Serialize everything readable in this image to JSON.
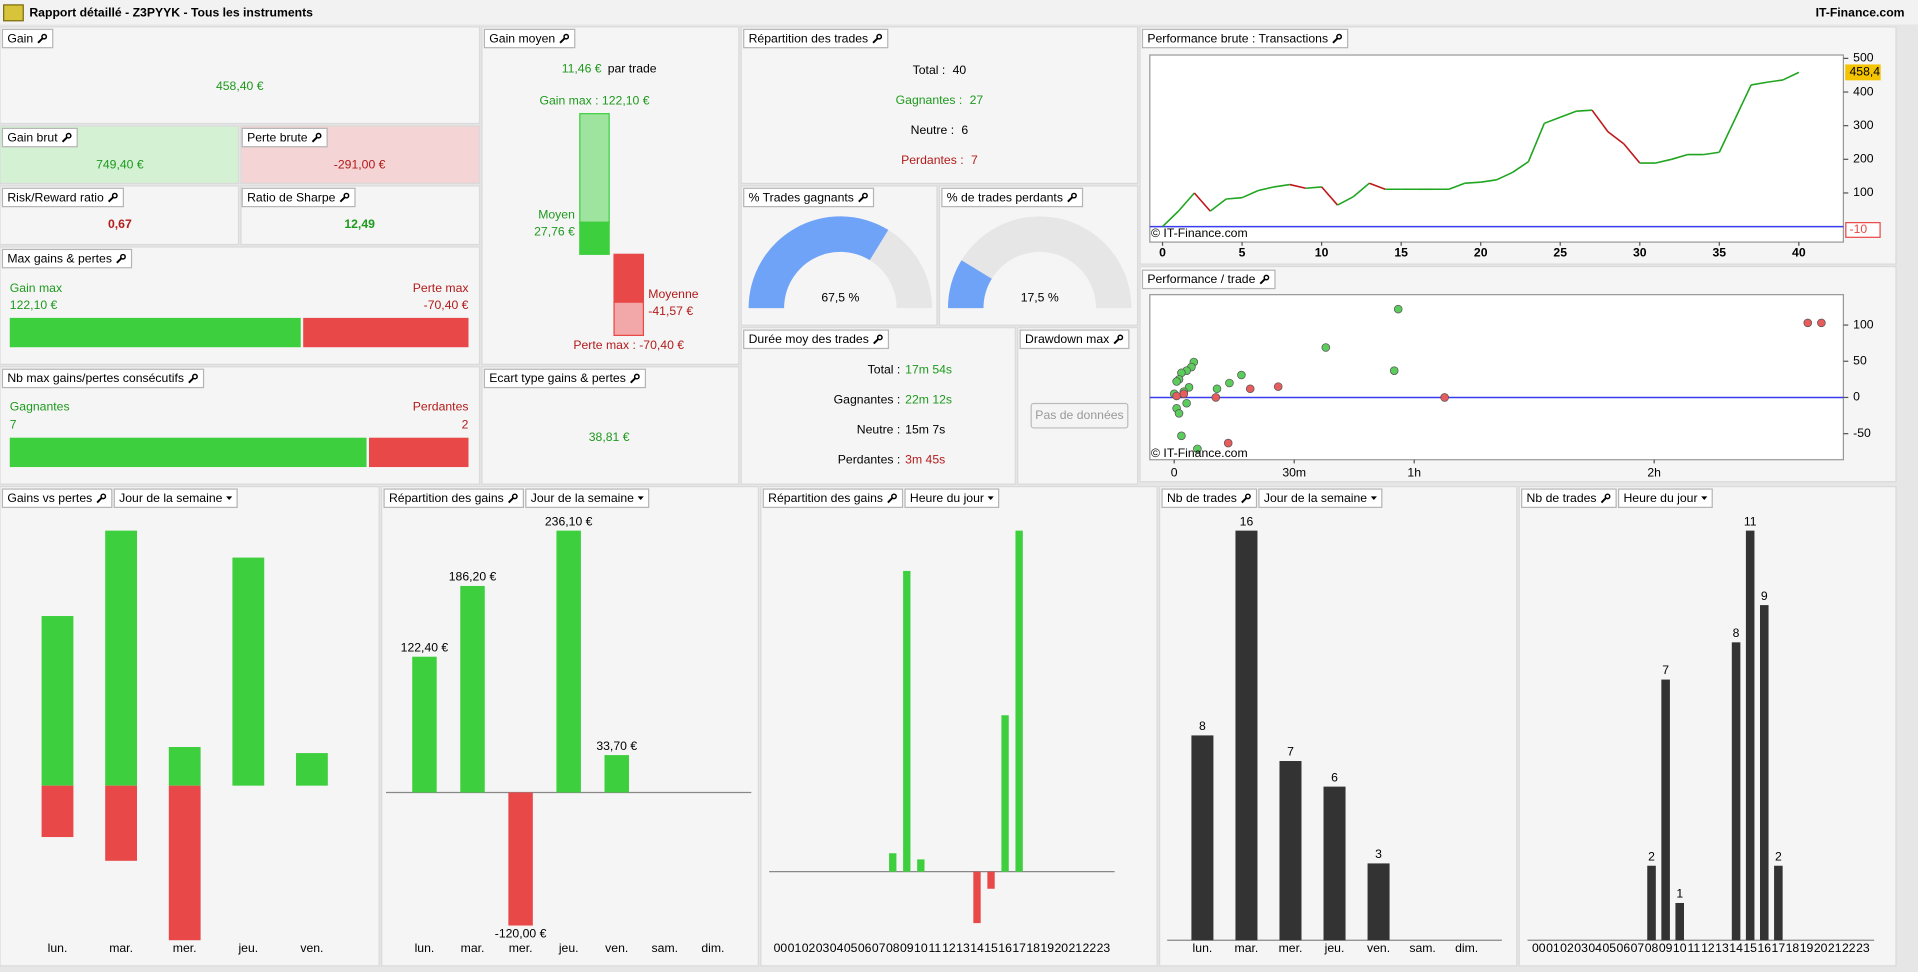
{
  "window": {
    "title": "Rapport détaillé - Z3PYYK - Tous les instruments",
    "brand": "IT-Finance.com"
  },
  "gain": {
    "label": "Gain",
    "value": "458,40 €"
  },
  "gain_brut": {
    "label": "Gain brut",
    "value": "749,40 €"
  },
  "perte_brute": {
    "label": "Perte brute",
    "value": "-291,00 €"
  },
  "risk_reward": {
    "label": "Risk/Reward ratio",
    "value": "0,67"
  },
  "sharpe": {
    "label": "Ratio de Sharpe",
    "value": "12,49"
  },
  "max_gains_pertes": {
    "label": "Max gains & pertes",
    "gain_label": "Gain max",
    "gain": 122.1,
    "gain_text": "122,10 €",
    "loss_label": "Perte max",
    "loss": -70.4,
    "loss_text": "-70,40 €",
    "gain_color": "#3dcf3d",
    "loss_color": "#e84848"
  },
  "consecutive": {
    "label": "Nb max gains/pertes consécutifs",
    "win_label": "Gagnantes",
    "wins": 7,
    "loss_label": "Perdantes",
    "losses": 2,
    "win_color": "#3dcf3d",
    "loss_color": "#e84848"
  },
  "gain_moyen": {
    "label": "Gain moyen",
    "value": "11,46 €",
    "suffix": "par trade",
    "max": 122.1,
    "max_label": "Gain max : 122,10 €",
    "avg": 27.76,
    "avg_name": "Moyen",
    "avg_label": "27,76 €",
    "avg_loss": -41.57,
    "avg_loss_name": "Moyenne",
    "avg_loss_label": "-41,57 €",
    "min": -70.4,
    "min_label": "Perte max : -70,40 €"
  },
  "ecart_type": {
    "label": "Ecart type gains & pertes",
    "value": "38,81 €"
  },
  "repartition_trades": {
    "label": "Répartition des trades",
    "rows": [
      {
        "label": "Total :",
        "value": 40,
        "color": "#000000"
      },
      {
        "label": "Gagnantes :",
        "value": 27,
        "color": "#1e9a1e"
      },
      {
        "label": "Neutre :",
        "value": 6,
        "color": "#000000"
      },
      {
        "label": "Perdantes :",
        "value": 7,
        "color": "#b31b1b"
      }
    ]
  },
  "pct_gagnants": {
    "label": "% Trades gagnants",
    "value": 67.5,
    "value_label": "67,5 %",
    "color": "#6fa3f7"
  },
  "pct_perdants": {
    "label": "% de trades perdants",
    "value": 17.5,
    "value_label": "17,5 %",
    "color": "#6fa3f7"
  },
  "duree": {
    "label": "Durée moy des trades",
    "rows": [
      {
        "label": "Total :",
        "value": "17m 54s",
        "color": "#1e9a1e"
      },
      {
        "label": "Gagnantes :",
        "value": "22m 12s",
        "color": "#1e9a1e"
      },
      {
        "label": "Neutre :",
        "value": "15m 7s",
        "color": "#000000"
      },
      {
        "label": "Perdantes :",
        "value": "3m 45s",
        "color": "#b31b1b"
      }
    ]
  },
  "drawdown": {
    "label": "Drawdown max",
    "button": "Pas de données"
  },
  "perf_brute": {
    "label": "Performance brute : Transactions",
    "type": "line",
    "x": [
      0,
      1,
      2,
      3,
      4,
      5,
      6,
      7,
      8,
      9,
      10,
      11,
      12,
      13,
      14,
      15,
      16,
      17,
      18,
      19,
      20,
      21,
      22,
      23,
      24,
      25,
      26,
      27,
      28,
      29,
      30,
      31,
      32,
      33,
      34,
      35,
      36,
      37,
      38,
      39,
      40
    ],
    "values": [
      0,
      46,
      100,
      46,
      82,
      86,
      107,
      118,
      125,
      114,
      118,
      64,
      89,
      129,
      111,
      111,
      111,
      111,
      111,
      129,
      132,
      139,
      161,
      193,
      307,
      325,
      343,
      346,
      282,
      246,
      189,
      189,
      200,
      214,
      214,
      221,
      321,
      421,
      429,
      436,
      458.4
    ],
    "up_color": "#1fa51f",
    "down_color": "#c0171b",
    "baseline": 0,
    "baseline_color": "#3a3af0",
    "xlim": [
      -0.8,
      42.8
    ],
    "ylim": [
      -46,
      510
    ],
    "xticks": [
      0,
      5,
      10,
      15,
      20,
      25,
      30,
      35,
      40
    ],
    "yticks": [
      100,
      200,
      300,
      400,
      500
    ],
    "markers": [
      {
        "value": 458.4,
        "label": "458,4",
        "color": "#f5c400"
      },
      {
        "value": -10,
        "label": "-10",
        "color": "#e84848"
      }
    ],
    "credit": "© IT-Finance.com"
  },
  "perf_trade": {
    "label": "Performance / trade",
    "type": "scatter",
    "series": [
      {
        "color": "#5ccc5c",
        "x": [
          4.9,
          4.3,
          3.1,
          1.8,
          1.2,
          0.6,
          3.7,
          2.4,
          0.6,
          1.2,
          1.8,
          5.8,
          56,
          37.9,
          55,
          10.7,
          16.8,
          13.8,
          0,
          3.1
        ],
        "values": [
          49,
          42,
          37,
          34,
          25,
          22,
          14,
          8,
          -15,
          -22,
          -53,
          -71,
          122,
          69,
          37,
          12,
          31,
          20,
          5,
          -8
        ]
      },
      {
        "color": "#e85c5c",
        "x": [
          0.6,
          2.4,
          10.4,
          19,
          26,
          67.6,
          13.5,
          158.4,
          161.8
        ],
        "values": [
          2,
          5,
          0,
          12,
          15,
          0,
          -63,
          103,
          103
        ]
      }
    ],
    "baseline": 0,
    "baseline_color": "#3a3af0",
    "xlim": [
      -6.1,
      167.3
    ],
    "ylim": [
      -86,
      142
    ],
    "xticks": [
      0,
      {
        "value": 30,
        "label": "30m"
      },
      {
        "value": 60,
        "label": "1h"
      },
      {
        "value": 120,
        "label": "2h"
      }
    ],
    "yticks": [
      -50,
      0,
      50,
      100
    ],
    "credit": "© IT-Finance.com"
  },
  "bottom_charts": [
    {
      "label": "Gains vs pertes",
      "dropdown": "Jour de la semaine",
      "type": "bar",
      "stacked": true,
      "categories": [
        "lun.",
        "mar.",
        "mer.",
        "jeu.",
        "ven."
      ],
      "series": [
        {
          "color": "#3dcf3d",
          "values": [
            175.6,
            264.0,
            40,
            236.1,
            33.7
          ]
        },
        {
          "color": "#e84848",
          "values": [
            -53.2,
            -77.8,
            -160,
            0,
            0
          ]
        }
      ]
    },
    {
      "label": "Répartition des gains",
      "dropdown": "Jour de la semaine",
      "type": "bar",
      "axis_line": true,
      "categories": [
        "lun.",
        "mar.",
        "mer.",
        "jeu.",
        "ven.",
        "sam.",
        "dim."
      ],
      "values": [
        122.4,
        186.2,
        -120,
        236.1,
        33.7,
        null,
        null
      ],
      "value_labels": [
        "122,40 €",
        "186,20 €",
        "-120,00 €",
        "236,10 €",
        "33,70 €",
        null,
        null
      ],
      "color": "#3dcf3d",
      "negative_color": "#e84848"
    },
    {
      "label": "Répartition des gains",
      "dropdown": "Heure du jour",
      "type": "bar",
      "axis_line": true,
      "categories": [
        "00",
        "01",
        "02",
        "03",
        "04",
        "05",
        "06",
        "07",
        "08",
        "09",
        "10",
        "11",
        "12",
        "13",
        "14",
        "15",
        "16",
        "17",
        "18",
        "19",
        "20",
        "21",
        "22",
        "23"
      ],
      "values": [
        null,
        null,
        null,
        null,
        null,
        null,
        null,
        null,
        11.1,
        181.3,
        7.4,
        null,
        null,
        null,
        -31,
        -10.3,
        94.3,
        205.6,
        null,
        null,
        null,
        null,
        null,
        null
      ],
      "color": "#3dcf3d",
      "negative_color": "#e84848"
    },
    {
      "label": "Nb de trades",
      "dropdown": "Jour de la semaine",
      "type": "bar",
      "axis_line": true,
      "show_values": true,
      "categories": [
        "lun.",
        "mar.",
        "mer.",
        "jeu.",
        "ven.",
        "sam.",
        "dim."
      ],
      "values": [
        8,
        16,
        7,
        6,
        3,
        null,
        null
      ],
      "color": "#333333"
    },
    {
      "label": "Nb de trades",
      "dropdown": "Heure du jour",
      "type": "bar",
      "axis_line": true,
      "show_values": true,
      "categories": [
        "00",
        "01",
        "02",
        "03",
        "04",
        "05",
        "06",
        "07",
        "08",
        "09",
        "10",
        "11",
        "12",
        "13",
        "14",
        "15",
        "16",
        "17",
        "18",
        "19",
        "20",
        "21",
        "22",
        "23"
      ],
      "values": [
        null,
        null,
        null,
        null,
        null,
        null,
        null,
        null,
        2,
        7,
        1,
        null,
        null,
        null,
        8,
        11,
        9,
        2,
        null,
        null,
        null,
        null,
        null,
        null
      ],
      "color": "#333333"
    }
  ]
}
